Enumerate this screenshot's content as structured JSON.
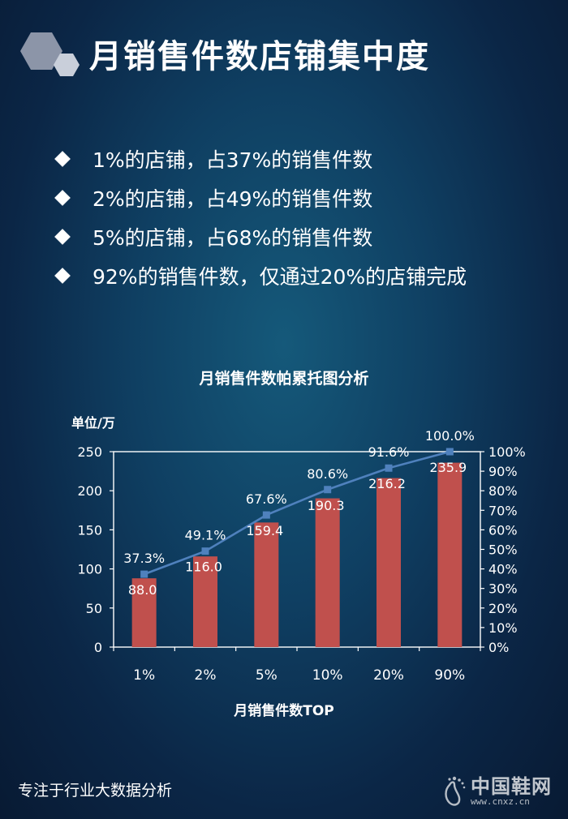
{
  "header": {
    "title": "月销售件数店铺集中度",
    "logo_icon": "hexagon-logo-icon"
  },
  "bullets": [
    "1%的店铺，占37%的销售件数",
    "2%的店铺，占49%的销售件数",
    "5%的店铺，占68%的销售件数",
    "92%的销售件数，仅通过20%的店铺完成"
  ],
  "footer": {
    "text": "专注于行业大数据分析",
    "brand_name": "中国鞋网",
    "brand_url": "www.cnxz.cn",
    "brand_icon": "footprint-icon"
  },
  "chart_data": {
    "type": "bar",
    "title": "月销售件数帕累托图分析",
    "unit_label": "单位/万",
    "xlabel": "月销售件数TOP",
    "categories": [
      "1%",
      "2%",
      "5%",
      "10%",
      "20%",
      "90%"
    ],
    "series": [
      {
        "type": "bar",
        "values": [
          88.0,
          116.0,
          159.4,
          190.3,
          216.2,
          235.9
        ],
        "labels": [
          "88.0",
          "116.0",
          "159.4",
          "190.3",
          "216.2",
          "235.9"
        ],
        "axis": "left",
        "color": "#c0504d"
      },
      {
        "type": "line",
        "values": [
          37.3,
          49.1,
          67.6,
          80.6,
          91.6,
          100.0
        ],
        "labels": [
          "37.3%",
          "49.1%",
          "67.6%",
          "80.6%",
          "91.6%",
          "100.0%"
        ],
        "axis": "right",
        "color": "#4f81bd"
      }
    ],
    "y_left": {
      "range": [
        0,
        250
      ],
      "ticks": [
        0,
        50,
        100,
        150,
        200,
        250
      ],
      "tick_labels": [
        "0",
        "50",
        "100",
        "150",
        "200",
        "250"
      ]
    },
    "y_right": {
      "range": [
        0,
        100
      ],
      "ticks": [
        0,
        10,
        20,
        30,
        40,
        50,
        60,
        70,
        80,
        90,
        100
      ],
      "tick_labels": [
        "0%",
        "10%",
        "20%",
        "30%",
        "40%",
        "50%",
        "60%",
        "70%",
        "80%",
        "90%",
        "100%"
      ]
    },
    "grid": false,
    "legend": "none"
  }
}
